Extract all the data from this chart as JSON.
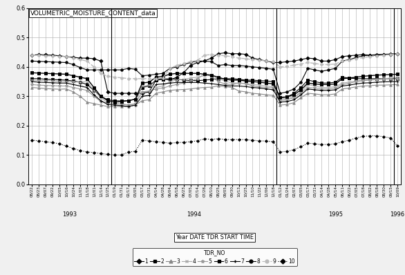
{
  "title": "VOLUMETRIC_MOISTURE_CONTENT_data",
  "xlabel": "Year DATE TDR START TIME",
  "ylabel": "",
  "ylim": [
    0,
    0.6
  ],
  "yticks": [
    0,
    0.1,
    0.2,
    0.3,
    0.4,
    0.5,
    0.6
  ],
  "legend_title": "TDR_NO",
  "bg_color": "#f0f0f0",
  "plot_bg": "#ffffff",
  "grid_color": "#aaaaaa",
  "text_color": "#000000",
  "date_labels": [
    "08/22",
    "08/23",
    "09/07",
    "09/22",
    "10/05",
    "10/16",
    "10/24",
    "11/03",
    "11/18",
    "12/01",
    "12/14",
    "12/25",
    "01/19",
    "01/31",
    "02/17",
    "03/05",
    "03/17",
    "03/31",
    "04/14",
    "04/28",
    "06/04",
    "06/18",
    "06/23",
    "07/05",
    "07/14",
    "07/28",
    "08/10",
    "08/25",
    "09/05",
    "09/30",
    "10/13",
    "10/25",
    "11/10",
    "11/22",
    "12/06",
    "12/18",
    "01/12",
    "01/24",
    "02/07",
    "03/05",
    "03/17",
    "03/31",
    "04/14",
    "04/28",
    "05/14",
    "06/11",
    "06/22",
    "07/05",
    "07/18",
    "08/02",
    "08/18",
    "08/30",
    "09/15",
    "10/09"
  ],
  "year_groups": [
    {
      "label": "1993",
      "start": 0,
      "end": 7
    },
    {
      "label": "1994",
      "start": 12,
      "end": 35
    },
    {
      "label": "1995",
      "start": 36,
      "end": 52
    },
    {
      "label": "1996",
      "start": 53,
      "end": 53
    }
  ],
  "series": [
    {
      "id": 1,
      "label": "1",
      "color": "#000000",
      "marker": "D",
      "markersize": 2.5,
      "linestyle": "-",
      "linewidth": 0.8,
      "values": [
        0.44,
        0.442,
        0.441,
        0.44,
        0.438,
        0.435,
        0.433,
        0.43,
        0.43,
        0.428,
        0.42,
        0.315,
        0.31,
        0.31,
        0.31,
        0.31,
        0.31,
        0.315,
        0.355,
        0.36,
        0.355,
        0.365,
        0.38,
        0.405,
        0.415,
        0.42,
        0.43,
        0.445,
        0.448,
        0.445,
        0.445,
        0.443,
        0.43,
        0.425,
        0.42,
        0.415,
        0.415,
        0.418,
        0.42,
        0.425,
        0.43,
        0.428,
        0.42,
        0.42,
        0.425,
        0.435,
        0.438,
        0.44,
        0.442,
        0.44,
        0.44,
        0.442,
        0.443,
        0.445
      ]
    },
    {
      "id": 2,
      "label": "2",
      "color": "#000000",
      "marker": "s",
      "markersize": 2.5,
      "linestyle": "-",
      "linewidth": 0.8,
      "values": [
        0.36,
        0.36,
        0.358,
        0.357,
        0.356,
        0.355,
        0.352,
        0.348,
        0.34,
        0.32,
        0.3,
        0.288,
        0.285,
        0.284,
        0.285,
        0.29,
        0.33,
        0.335,
        0.355,
        0.358,
        0.36,
        0.358,
        0.355,
        0.354,
        0.353,
        0.355,
        0.357,
        0.36,
        0.36,
        0.36,
        0.358,
        0.355,
        0.355,
        0.353,
        0.352,
        0.35,
        0.295,
        0.298,
        0.31,
        0.33,
        0.355,
        0.35,
        0.345,
        0.345,
        0.348,
        0.365,
        0.362,
        0.36,
        0.36,
        0.36,
        0.36,
        0.36,
        0.36,
        0.36
      ]
    },
    {
      "id": 3,
      "label": "3",
      "color": "#888888",
      "marker": "^",
      "markersize": 2.5,
      "linestyle": "-",
      "linewidth": 0.8,
      "values": [
        0.33,
        0.328,
        0.326,
        0.325,
        0.324,
        0.325,
        0.315,
        0.3,
        0.28,
        0.275,
        0.27,
        0.265,
        0.265,
        0.265,
        0.265,
        0.27,
        0.285,
        0.288,
        0.31,
        0.315,
        0.32,
        0.322,
        0.323,
        0.325,
        0.328,
        0.33,
        0.331,
        0.335,
        0.333,
        0.33,
        0.318,
        0.315,
        0.31,
        0.308,
        0.305,
        0.303,
        0.27,
        0.272,
        0.278,
        0.295,
        0.31,
        0.308,
        0.305,
        0.305,
        0.308,
        0.325,
        0.328,
        0.332,
        0.335,
        0.336,
        0.338,
        0.338,
        0.339,
        0.34
      ]
    },
    {
      "id": 4,
      "label": "4",
      "color": "#aaaaaa",
      "marker": "x",
      "markersize": 3,
      "linestyle": "-",
      "linewidth": 0.8,
      "values": [
        0.355,
        0.354,
        0.353,
        0.352,
        0.351,
        0.35,
        0.349,
        0.348,
        0.35,
        0.32,
        0.295,
        0.278,
        0.275,
        0.274,
        0.27,
        0.275,
        0.335,
        0.338,
        0.33,
        0.335,
        0.35,
        0.355,
        0.358,
        0.362,
        0.365,
        0.37,
        0.372,
        0.36,
        0.352,
        0.345,
        0.345,
        0.343,
        0.34,
        0.338,
        0.335,
        0.332,
        0.29,
        0.292,
        0.298,
        0.315,
        0.34,
        0.335,
        0.33,
        0.33,
        0.333,
        0.345,
        0.348,
        0.352,
        0.355,
        0.356,
        0.358,
        0.36,
        0.362,
        0.365
      ]
    },
    {
      "id": 5,
      "label": "5",
      "color": "#999999",
      "marker": "*",
      "markersize": 3.5,
      "linestyle": "-",
      "linewidth": 0.8,
      "values": [
        0.34,
        0.338,
        0.337,
        0.336,
        0.335,
        0.335,
        0.33,
        0.325,
        0.32,
        0.3,
        0.282,
        0.277,
        0.275,
        0.273,
        0.27,
        0.274,
        0.315,
        0.318,
        0.325,
        0.328,
        0.335,
        0.34,
        0.345,
        0.352,
        0.36,
        0.375,
        0.368,
        0.35,
        0.342,
        0.34,
        0.345,
        0.343,
        0.335,
        0.332,
        0.33,
        0.328,
        0.285,
        0.288,
        0.295,
        0.312,
        0.33,
        0.328,
        0.325,
        0.325,
        0.328,
        0.34,
        0.344,
        0.35,
        0.353,
        0.355,
        0.357,
        0.358,
        0.359,
        0.36
      ]
    },
    {
      "id": 6,
      "label": "6",
      "color": "#000000",
      "marker": "s",
      "markersize": 3,
      "linestyle": "-",
      "linewidth": 1.0,
      "values": [
        0.38,
        0.379,
        0.378,
        0.377,
        0.376,
        0.375,
        0.37,
        0.365,
        0.36,
        0.33,
        0.3,
        0.285,
        0.28,
        0.282,
        0.285,
        0.29,
        0.345,
        0.348,
        0.365,
        0.368,
        0.375,
        0.378,
        0.378,
        0.378,
        0.378,
        0.375,
        0.372,
        0.365,
        0.358,
        0.355,
        0.355,
        0.352,
        0.35,
        0.348,
        0.345,
        0.342,
        0.295,
        0.298,
        0.305,
        0.322,
        0.345,
        0.342,
        0.34,
        0.34,
        0.342,
        0.36,
        0.362,
        0.365,
        0.368,
        0.37,
        0.372,
        0.373,
        0.374,
        0.375
      ]
    },
    {
      "id": 7,
      "label": "7",
      "color": "#000000",
      "marker": "+",
      "markersize": 3.5,
      "linestyle": "-",
      "linewidth": 0.8,
      "values": [
        0.35,
        0.348,
        0.347,
        0.346,
        0.345,
        0.345,
        0.34,
        0.335,
        0.33,
        0.305,
        0.285,
        0.272,
        0.27,
        0.268,
        0.265,
        0.27,
        0.3,
        0.303,
        0.34,
        0.342,
        0.345,
        0.347,
        0.347,
        0.347,
        0.347,
        0.345,
        0.343,
        0.34,
        0.337,
        0.335,
        0.335,
        0.333,
        0.33,
        0.328,
        0.325,
        0.322,
        0.28,
        0.282,
        0.288,
        0.305,
        0.325,
        0.322,
        0.32,
        0.32,
        0.322,
        0.335,
        0.338,
        0.342,
        0.345,
        0.346,
        0.348,
        0.349,
        0.35,
        0.35
      ]
    },
    {
      "id": 8,
      "label": "8",
      "color": "#000000",
      "marker": "o",
      "markersize": 2.5,
      "linestyle": "-",
      "linewidth": 0.8,
      "values": [
        0.42,
        0.419,
        0.418,
        0.417,
        0.416,
        0.415,
        0.408,
        0.398,
        0.39,
        0.39,
        0.39,
        0.39,
        0.39,
        0.39,
        0.395,
        0.392,
        0.37,
        0.372,
        0.375,
        0.378,
        0.395,
        0.4,
        0.408,
        0.415,
        0.42,
        0.42,
        0.418,
        0.405,
        0.408,
        0.405,
        0.405,
        0.403,
        0.4,
        0.398,
        0.395,
        0.392,
        0.31,
        0.315,
        0.325,
        0.348,
        0.395,
        0.39,
        0.385,
        0.39,
        0.395,
        0.42,
        0.425,
        0.432,
        0.438,
        0.44,
        0.442,
        0.443,
        0.444,
        0.445
      ]
    },
    {
      "id": 9,
      "label": "9",
      "color": "#bbbbbb",
      "marker": "o",
      "markersize": 2.5,
      "linestyle": "--",
      "linewidth": 1.0,
      "values": [
        0.44,
        0.44,
        0.438,
        0.437,
        0.436,
        0.435,
        0.43,
        0.425,
        0.42,
        0.4,
        0.378,
        0.368,
        0.365,
        0.363,
        0.36,
        0.36,
        0.36,
        0.36,
        0.36,
        0.362,
        0.395,
        0.405,
        0.412,
        0.418,
        0.422,
        0.44,
        0.442,
        0.44,
        0.438,
        0.435,
        0.43,
        0.428,
        0.425,
        0.423,
        0.42,
        0.418,
        0.4,
        0.402,
        0.406,
        0.41,
        0.415,
        0.412,
        0.408,
        0.408,
        0.41,
        0.42,
        0.423,
        0.428,
        0.432,
        0.435,
        0.438,
        0.44,
        0.442,
        0.445
      ]
    },
    {
      "id": 10,
      "label": "10",
      "color": "#000000",
      "marker": "D",
      "markersize": 2,
      "linestyle": ":",
      "linewidth": 0.8,
      "values": [
        0.15,
        0.148,
        0.145,
        0.142,
        0.138,
        0.13,
        0.122,
        0.115,
        0.11,
        0.108,
        0.105,
        0.102,
        0.1,
        0.1,
        0.11,
        0.112,
        0.15,
        0.148,
        0.145,
        0.143,
        0.14,
        0.142,
        0.143,
        0.145,
        0.148,
        0.155,
        0.153,
        0.155,
        0.153,
        0.152,
        0.153,
        0.152,
        0.15,
        0.148,
        0.147,
        0.145,
        0.11,
        0.112,
        0.118,
        0.128,
        0.14,
        0.138,
        0.135,
        0.136,
        0.138,
        0.145,
        0.15,
        0.158,
        0.163,
        0.165,
        0.165,
        0.162,
        0.158,
        0.13
      ]
    }
  ]
}
